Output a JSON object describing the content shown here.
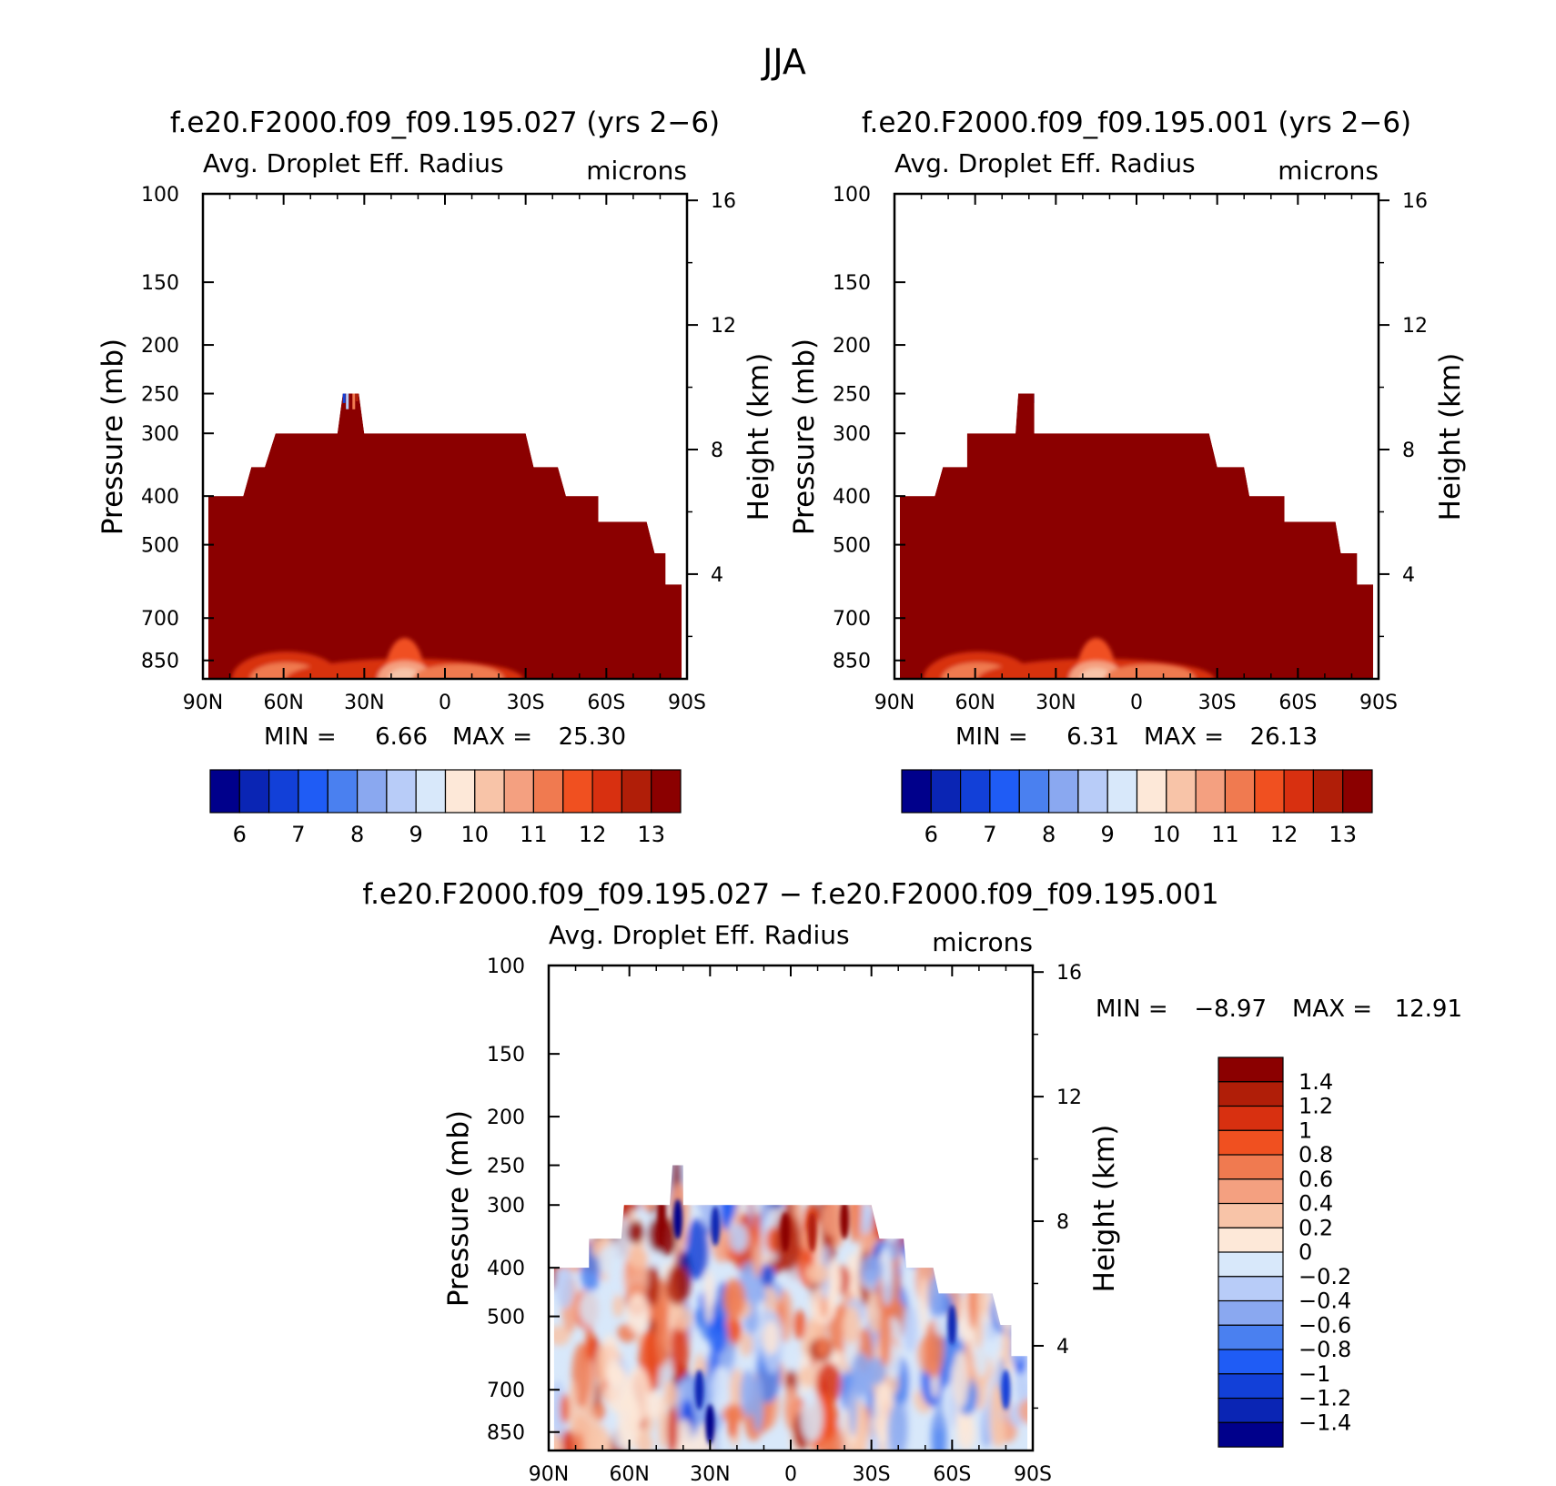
{
  "title": "JJA",
  "top_panels": [
    {
      "title": "f.e20.F2000.f09_f09.195.027 (yrs 2−6)",
      "variable": "Avg. Droplet Eff. Radius",
      "units": "microns",
      "ylabel": "Pressure (mb)",
      "y2label": "Height (km)",
      "stats": {
        "min_label": "MIN =",
        "min": "6.66",
        "max_label": "MAX =",
        "max": "25.30"
      }
    },
    {
      "title": "f.e20.F2000.f09_f09.195.001 (yrs 2−6)",
      "variable": "Avg. Droplet Eff. Radius",
      "units": "microns",
      "ylabel": "Pressure (mb)",
      "y2label": "Height (km)",
      "stats": {
        "min_label": "MIN =",
        "min": "6.31",
        "max_label": "MAX =",
        "max": "26.13"
      }
    }
  ],
  "diff_panel": {
    "title": "f.e20.F2000.f09_f09.195.027 − f.e20.F2000.f09_f09.195.001",
    "variable": "Avg. Droplet Eff. Radius",
    "units": "microns",
    "ylabel": "Pressure (mb)",
    "y2label": "Height (km)",
    "stats": {
      "min_label": "MIN =",
      "min": "−8.97",
      "max_label": "MAX =",
      "max": "12.91"
    }
  },
  "colors": {
    "abs_scale": [
      "#00008b",
      "#0a25b4",
      "#1240d8",
      "#1f5cf5",
      "#4a80f0",
      "#8aa8f0",
      "#b8ccf8",
      "#d8e8fa",
      "#fde8d8",
      "#f8c4a8",
      "#f4a080",
      "#f07a50",
      "#f05020",
      "#d83010",
      "#b01e08",
      "#8b0000"
    ],
    "diff_scale": [
      "#00008b",
      "#0a25b4",
      "#1240d8",
      "#1f5cf5",
      "#4a80f0",
      "#8aa8f0",
      "#b8ccf8",
      "#d8e8fa",
      "#fde8d8",
      "#f8c4a8",
      "#f4a080",
      "#f07a50",
      "#f05020",
      "#d83010",
      "#b01e08",
      "#8b0000"
    ]
  },
  "chart_data": [
    {
      "type": "heatmap",
      "title": "f.e20.F2000.f09_f09.195.027 (yrs 2−6)",
      "variable": "Avg. Droplet Eff. Radius",
      "units": "microns",
      "xlabel": "",
      "ylabel": "Pressure (mb)",
      "y2label": "Height (km)",
      "x_ticks": [
        "90N",
        "60N",
        "30N",
        "0",
        "30S",
        "60S",
        "90S"
      ],
      "x_range": [
        90,
        -90
      ],
      "y_ticks": [
        100,
        150,
        200,
        250,
        300,
        400,
        500,
        700,
        850
      ],
      "y_scale": "log",
      "y_range": [
        100,
        925
      ],
      "y2_ticks": [
        4,
        8,
        12,
        16
      ],
      "contour_levels": [
        5.5,
        6,
        6.5,
        7,
        7.5,
        8,
        8.5,
        9,
        9.5,
        10,
        10.5,
        11,
        11.5,
        12,
        12.5,
        13
      ],
      "colorbar_labels": [
        "6",
        "7",
        "8",
        "9",
        "10",
        "11",
        "12",
        "13"
      ],
      "min": 6.66,
      "max": 25.3,
      "cloud_top_pressure": [
        [
          88,
          400
        ],
        [
          75,
          400
        ],
        [
          72,
          350
        ],
        [
          67,
          350
        ],
        [
          63,
          300
        ],
        [
          40,
          300
        ],
        [
          38,
          250
        ],
        [
          32,
          250
        ],
        [
          30,
          300
        ],
        [
          -30,
          300
        ],
        [
          -33,
          350
        ],
        [
          -42,
          350
        ],
        [
          -45,
          400
        ],
        [
          -57,
          400
        ],
        [
          -57,
          450
        ],
        [
          -75,
          450
        ],
        [
          -78,
          520
        ],
        [
          -82,
          520
        ],
        [
          -82,
          600
        ],
        [
          -88,
          600
        ],
        [
          -88,
          650
        ]
      ],
      "low_level_minimum": [
        {
          "lat": 59,
          "value": 10.5
        },
        {
          "lat": 15,
          "value": 9.5
        },
        {
          "lat": -5,
          "value": 10.5
        }
      ]
    },
    {
      "type": "heatmap",
      "title": "f.e20.F2000.f09_f09.195.001 (yrs 2−6)",
      "variable": "Avg. Droplet Eff. Radius",
      "units": "microns",
      "xlabel": "",
      "ylabel": "Pressure (mb)",
      "y2label": "Height (km)",
      "x_ticks": [
        "90N",
        "60N",
        "30N",
        "0",
        "30S",
        "60S",
        "90S"
      ],
      "x_range": [
        90,
        -90
      ],
      "y_ticks": [
        100,
        150,
        200,
        250,
        300,
        400,
        500,
        700,
        850
      ],
      "y_scale": "log",
      "y_range": [
        100,
        925
      ],
      "y2_ticks": [
        4,
        8,
        12,
        16
      ],
      "contour_levels": [
        5.5,
        6,
        6.5,
        7,
        7.5,
        8,
        8.5,
        9,
        9.5,
        10,
        10.5,
        11,
        11.5,
        12,
        12.5,
        13
      ],
      "colorbar_labels": [
        "6",
        "7",
        "8",
        "9",
        "10",
        "11",
        "12",
        "13"
      ],
      "min": 6.31,
      "max": 26.13,
      "cloud_top_pressure": [
        [
          88,
          400
        ],
        [
          75,
          400
        ],
        [
          72,
          350
        ],
        [
          63,
          350
        ],
        [
          63,
          300
        ],
        [
          45,
          300
        ],
        [
          44,
          250
        ],
        [
          38,
          250
        ],
        [
          38,
          300
        ],
        [
          -27,
          300
        ],
        [
          -30,
          350
        ],
        [
          -40,
          350
        ],
        [
          -42,
          400
        ],
        [
          -55,
          400
        ],
        [
          -55,
          450
        ],
        [
          -74,
          450
        ],
        [
          -76,
          520
        ],
        [
          -82,
          520
        ],
        [
          -82,
          600
        ],
        [
          -88,
          600
        ],
        [
          -88,
          650
        ]
      ],
      "low_level_minimum": [
        {
          "lat": 59,
          "value": 10.5
        },
        {
          "lat": 15,
          "value": 9.5
        },
        {
          "lat": -5,
          "value": 10.5
        }
      ]
    },
    {
      "type": "heatmap",
      "title": "f.e20.F2000.f09_f09.195.027 − f.e20.F2000.f09_f09.195.001",
      "variable": "Avg. Droplet Eff. Radius",
      "units": "microns",
      "xlabel": "",
      "ylabel": "Pressure (mb)",
      "y2label": "Height (km)",
      "x_ticks": [
        "90N",
        "60N",
        "30N",
        "0",
        "30S",
        "60S",
        "90S"
      ],
      "x_range": [
        90,
        -90
      ],
      "y_ticks": [
        100,
        150,
        200,
        250,
        300,
        400,
        500,
        700,
        850
      ],
      "y_scale": "log",
      "y_range": [
        100,
        925
      ],
      "y2_ticks": [
        4,
        8,
        12,
        16
      ],
      "contour_levels": [
        -1.6,
        -1.4,
        -1.2,
        -1,
        -0.8,
        -0.6,
        -0.4,
        -0.2,
        0,
        0.2,
        0.4,
        0.6,
        0.8,
        1,
        1.2,
        1.4
      ],
      "colorbar_labels": [
        "1.4",
        "1.2",
        "1",
        "0.8",
        "0.6",
        "0.4",
        "0.2",
        "0",
        "−0.2",
        "−0.4",
        "−0.6",
        "−0.8",
        "−1",
        "−1.2",
        "−1.4"
      ],
      "min": -8.97,
      "max": 12.91,
      "cloud_top_pressure": [
        [
          88,
          400
        ],
        [
          75,
          400
        ],
        [
          75,
          350
        ],
        [
          63,
          350
        ],
        [
          62,
          300
        ],
        [
          45,
          300
        ],
        [
          44,
          250
        ],
        [
          40,
          250
        ],
        [
          40,
          300
        ],
        [
          -30,
          300
        ],
        [
          -33,
          350
        ],
        [
          -42,
          350
        ],
        [
          -43,
          400
        ],
        [
          -53,
          400
        ],
        [
          -55,
          450
        ],
        [
          -75,
          450
        ],
        [
          -78,
          520
        ],
        [
          -82,
          520
        ],
        [
          -82,
          600
        ],
        [
          -88,
          600
        ],
        [
          -88,
          650
        ]
      ]
    }
  ]
}
